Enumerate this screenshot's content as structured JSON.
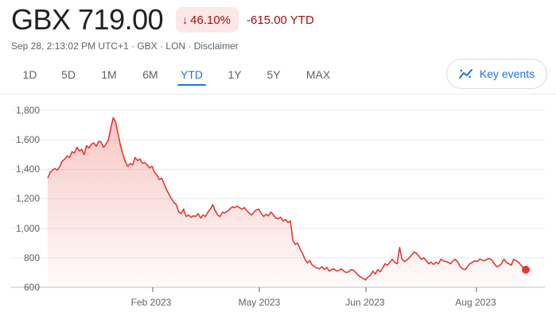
{
  "quote": {
    "price": "GBX 719.00",
    "change_pct": "46.10%",
    "change_abs": "-615.00 YTD",
    "meta": "Sep 28, 2:13:02 PM UTC+1 · GBX · LON · Disclaimer"
  },
  "ranges": [
    "1D",
    "5D",
    "1M",
    "6M",
    "YTD",
    "1Y",
    "5Y",
    "MAX"
  ],
  "active_range": "YTD",
  "key_events_label": "Key events",
  "colors": {
    "line": "#e6382f",
    "negative": "#a50e0e",
    "badge_bg": "#fce8e6",
    "accent": "#1a73e8"
  },
  "icons": {
    "change": "arrow-down-icon",
    "key_events": "trend-icon"
  },
  "chart_data": {
    "type": "area",
    "title": "",
    "xlabel": "",
    "ylabel": "",
    "ylim": [
      600,
      1800
    ],
    "yticks": [
      "1,800",
      "1,600",
      "1,400",
      "1,200",
      "1,000",
      "800",
      "600"
    ],
    "xtick_labels": [
      "Feb 2023",
      "May 2023",
      "Jun 2023",
      "Aug 2023"
    ],
    "grid": true,
    "series": [
      {
        "values": [
          1340,
          1380,
          1395,
          1405,
          1395,
          1420,
          1455,
          1470,
          1490,
          1480,
          1520,
          1510,
          1550,
          1525,
          1535,
          1500,
          1560,
          1545,
          1570,
          1580,
          1555,
          1590,
          1585,
          1550,
          1570,
          1600,
          1680,
          1750,
          1720,
          1640,
          1560,
          1500,
          1450,
          1420,
          1440,
          1430,
          1480,
          1460,
          1470,
          1440,
          1445,
          1430,
          1410,
          1420,
          1380,
          1360,
          1330,
          1340,
          1300,
          1260,
          1230,
          1200,
          1175,
          1160,
          1110,
          1100,
          1130,
          1080,
          1090,
          1075,
          1085,
          1080,
          1100,
          1070,
          1090,
          1080,
          1110,
          1130,
          1160,
          1120,
          1090,
          1080,
          1110,
          1105,
          1115,
          1130,
          1145,
          1140,
          1150,
          1140,
          1130,
          1140,
          1120,
          1105,
          1090,
          1110,
          1125,
          1130,
          1100,
          1080,
          1095,
          1085,
          1110,
          1090,
          1070,
          1065,
          1075,
          1050,
          1060,
          1040,
          1050,
          920,
          890,
          900,
          860,
          830,
          790,
          765,
          780,
          750,
          740,
          730,
          725,
          740,
          720,
          735,
          710,
          720,
          725,
          710,
          715,
          725,
          710,
          700,
          705,
          720,
          715,
          700,
          680,
          670,
          660,
          650,
          670,
          680,
          710,
          690,
          720,
          705,
          730,
          760,
          750,
          770,
          790,
          770,
          760,
          870,
          790,
          775,
          785,
          800,
          820,
          840,
          830,
          810,
          790,
          800,
          780,
          760,
          770,
          755,
          770,
          760,
          790,
          780,
          775,
          770,
          760,
          780,
          790,
          770,
          740,
          725,
          720,
          740,
          760,
          770,
          780,
          775,
          790,
          785,
          780,
          790,
          795,
          785,
          760,
          740,
          745,
          760,
          790,
          770,
          760,
          750,
          790,
          780,
          770,
          750,
          735,
          719
        ]
      }
    ]
  }
}
